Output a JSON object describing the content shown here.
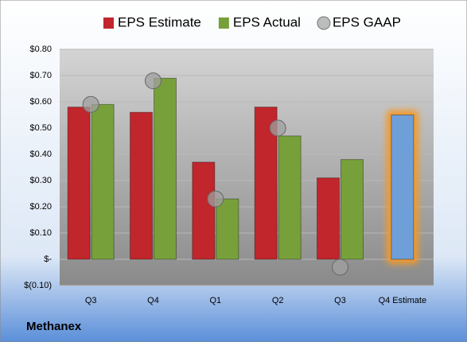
{
  "chart_data": {
    "type": "bar",
    "title": "Methanex",
    "categories": [
      "Q3",
      "Q4",
      "Q1",
      "Q2",
      "Q3",
      "Q4 Estimate"
    ],
    "series": [
      {
        "name": "EPS Estimate",
        "color": "#c0262c",
        "colors": [
          "#c0262c",
          "#c0262c",
          "#c0262c",
          "#c0262c",
          "#c0262c",
          "#6f9fd8"
        ],
        "values": [
          0.58,
          0.56,
          0.37,
          0.58,
          0.31,
          0.55
        ]
      },
      {
        "name": "EPS Actual",
        "color": "#77a03a",
        "values": [
          0.59,
          0.69,
          0.23,
          0.47,
          0.38,
          null
        ]
      },
      {
        "name": "EPS GAAP",
        "color": "#a0a0a0",
        "marker": "circle",
        "values": [
          0.59,
          0.68,
          0.23,
          0.5,
          -0.03,
          null
        ]
      }
    ],
    "ylim": [
      -0.1,
      0.8
    ],
    "yticks": [
      {
        "value": -0.1,
        "label": "$(0.10)"
      },
      {
        "value": 0,
        "label": "$-"
      },
      {
        "value": 0.1,
        "label": "$0.10"
      },
      {
        "value": 0.2,
        "label": "$0.20"
      },
      {
        "value": 0.3,
        "label": "$0.30"
      },
      {
        "value": 0.4,
        "label": "$0.40"
      },
      {
        "value": 0.5,
        "label": "$0.50"
      },
      {
        "value": 0.6,
        "label": "$0.60"
      },
      {
        "value": 0.7,
        "label": "$0.70"
      },
      {
        "value": 0.8,
        "label": "$0.80"
      }
    ],
    "grid": true,
    "legend": "top"
  }
}
